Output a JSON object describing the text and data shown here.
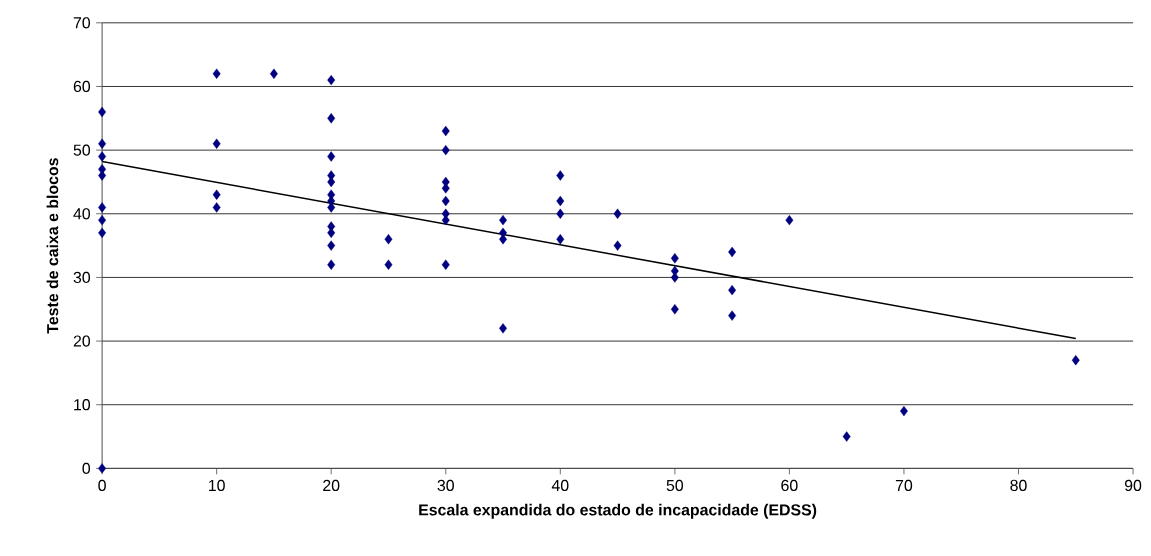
{
  "chart_data": {
    "type": "scatter",
    "xlabel": "Escala expandida do estado de incapacidade (EDSS)",
    "ylabel": "Teste de caixa e blocos",
    "series": [
      {
        "color": "#000080",
        "marker": "diamond",
        "x": [
          0,
          0,
          0,
          0,
          0,
          0,
          0,
          0,
          0,
          10,
          10,
          10,
          10,
          15,
          20,
          20,
          20,
          20,
          20,
          20,
          20,
          20,
          20,
          20,
          20,
          20,
          25,
          25,
          30,
          30,
          30,
          30,
          30,
          30,
          30,
          30,
          35,
          35,
          35,
          35,
          40,
          40,
          40,
          40,
          45,
          45,
          50,
          50,
          50,
          50,
          55,
          55,
          55,
          60,
          65,
          70,
          85
        ],
        "values": [
          56,
          51,
          49,
          47,
          46,
          41,
          39,
          37,
          0,
          62,
          51,
          43,
          41,
          62,
          61,
          55,
          49,
          46,
          45,
          43,
          42,
          41,
          38,
          37,
          35,
          32,
          36,
          32,
          53,
          50,
          45,
          44,
          42,
          40,
          39,
          32,
          39,
          37,
          36,
          22,
          46,
          42,
          40,
          36,
          40,
          35,
          33,
          31,
          30,
          25,
          34,
          28,
          24,
          39,
          5,
          9,
          17
        ]
      },
      {
        "type": "line",
        "marker": "none",
        "color": "#000000",
        "x": [
          0,
          85
        ],
        "values": [
          48.2,
          20.4
        ]
      }
    ],
    "grid": "y",
    "xlim": [
      0,
      90
    ],
    "ylim": [
      0,
      70
    ],
    "xticks": [
      0,
      10,
      20,
      30,
      40,
      50,
      60,
      70,
      80,
      90
    ],
    "yticks": [
      0,
      10,
      20,
      30,
      40,
      50,
      60,
      70
    ]
  }
}
